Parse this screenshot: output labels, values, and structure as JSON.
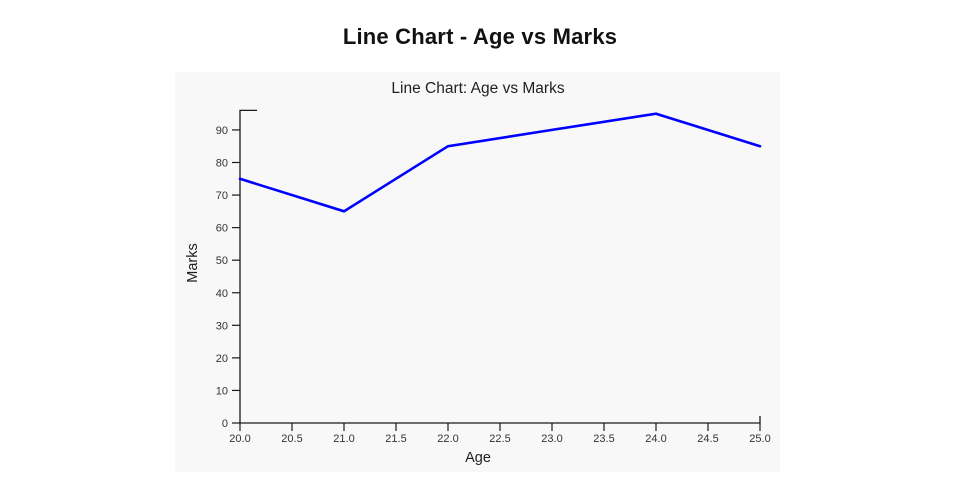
{
  "page": {
    "title": "Line Chart - Age vs Marks"
  },
  "figure": {
    "background": "#f8f8f8"
  },
  "chart_data": {
    "type": "line",
    "title": "Line Chart: Age vs Marks",
    "xlabel": "Age",
    "ylabel": "Marks",
    "x": [
      20,
      21,
      22,
      23,
      24,
      25
    ],
    "series": [
      {
        "name": "Marks",
        "values": [
          75,
          65,
          85,
          90,
          95,
          85
        ],
        "color": "#0000ff"
      }
    ],
    "xlim": [
      20,
      25
    ],
    "ylim": [
      0,
      96
    ],
    "x_tick_labels": [
      "20.0",
      "20.5",
      "21.0",
      "21.5",
      "22.0",
      "22.5",
      "23.0",
      "23.5",
      "24.0",
      "24.5",
      "25.0"
    ],
    "x_tick_values": [
      20,
      20.5,
      21,
      21.5,
      22,
      22.5,
      23,
      23.5,
      24,
      24.5,
      25
    ],
    "y_tick_labels": [
      "0",
      "10",
      "20",
      "30",
      "40",
      "50",
      "60",
      "70",
      "80",
      "90"
    ],
    "y_tick_values": [
      0,
      10,
      20,
      30,
      40,
      50,
      60,
      70,
      80,
      90
    ],
    "grid": false,
    "legend_position": "none",
    "axis_color": "#1a1a1a",
    "tick_label_color": "#333333",
    "title_color": "#1f1f1f"
  }
}
